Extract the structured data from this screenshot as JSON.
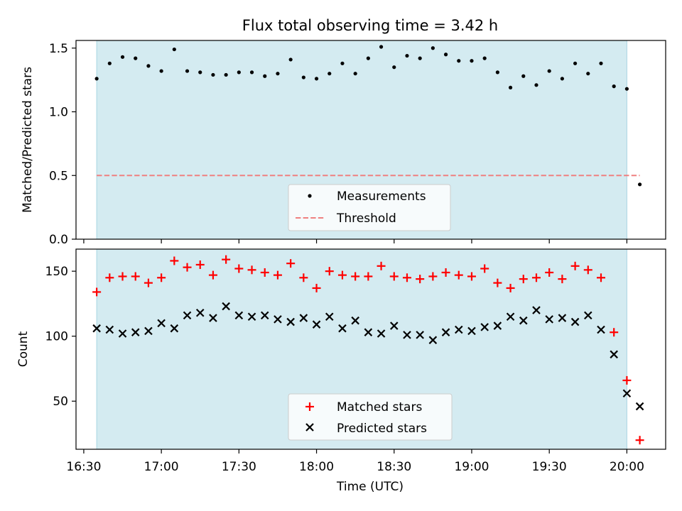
{
  "colors": {
    "shade": "#d4ebf1",
    "shade_edge": "#a9d5e1",
    "threshold": "#ef8080",
    "matched": "#ff0000",
    "predicted": "#000000",
    "measurement": "#000000"
  },
  "times": [
    "16:35",
    "16:40",
    "16:45",
    "16:50",
    "16:55",
    "17:00",
    "17:05",
    "17:10",
    "17:15",
    "17:20",
    "17:25",
    "17:30",
    "17:35",
    "17:40",
    "17:45",
    "17:50",
    "17:55",
    "18:00",
    "18:05",
    "18:10",
    "18:15",
    "18:20",
    "18:25",
    "18:30",
    "18:35",
    "18:40",
    "18:45",
    "18:50",
    "18:55",
    "19:00",
    "19:05",
    "19:10",
    "19:15",
    "19:20",
    "19:25",
    "19:30",
    "19:35",
    "19:40",
    "19:45",
    "19:50",
    "19:55",
    "20:00",
    "20:05"
  ],
  "chart_data": [
    {
      "type": "scatter",
      "title": "Flux total observing time = 3.42 h",
      "xlabel": "",
      "ylabel": "Matched/Predicted stars",
      "xlim": [
        "16:27",
        "20:15"
      ],
      "ylim": [
        0,
        1.56
      ],
      "yticks": [
        0.0,
        0.5,
        1.0,
        1.5
      ],
      "ytick_labels": [
        "0.0",
        "0.5",
        "1.0",
        "1.5"
      ],
      "shaded_span": [
        "16:35",
        "20:00"
      ],
      "threshold": {
        "value": 0.5,
        "x_range": [
          "16:35",
          "20:05"
        ]
      },
      "legend": {
        "position": "lower-center",
        "entries": [
          "Measurements",
          "Threshold"
        ]
      },
      "series": [
        {
          "name": "Measurements",
          "values": [
            1.26,
            1.38,
            1.43,
            1.42,
            1.36,
            1.32,
            1.49,
            1.32,
            1.31,
            1.29,
            1.29,
            1.31,
            1.31,
            1.28,
            1.3,
            1.41,
            1.27,
            1.26,
            1.3,
            1.38,
            1.3,
            1.42,
            1.51,
            1.35,
            1.44,
            1.42,
            1.5,
            1.45,
            1.4,
            1.4,
            1.42,
            1.31,
            1.19,
            1.28,
            1.21,
            1.32,
            1.26,
            1.38,
            1.3,
            1.38,
            1.2,
            1.18,
            0.43
          ]
        }
      ]
    },
    {
      "type": "scatter",
      "title": "",
      "xlabel": "Time (UTC)",
      "ylabel": "Count",
      "xlim": [
        "16:27",
        "20:15"
      ],
      "ylim": [
        13,
        167
      ],
      "yticks": [
        50,
        100,
        150
      ],
      "ytick_labels": [
        "50",
        "100",
        "150"
      ],
      "xticks": [
        "16:30",
        "17:00",
        "17:30",
        "18:00",
        "18:30",
        "19:00",
        "19:30",
        "20:00"
      ],
      "xtick_labels": [
        "16:30",
        "17:00",
        "17:30",
        "18:00",
        "18:30",
        "19:00",
        "19:30",
        "20:00"
      ],
      "shaded_span": [
        "16:35",
        "20:00"
      ],
      "legend": {
        "position": "lower-center",
        "entries": [
          "Matched stars",
          "Predicted stars"
        ]
      },
      "series": [
        {
          "name": "Matched stars",
          "values": [
            134,
            145,
            146,
            146,
            141,
            145,
            158,
            153,
            155,
            147,
            159,
            152,
            151,
            149,
            147,
            156,
            145,
            137,
            150,
            147,
            146,
            146,
            154,
            146,
            145,
            144,
            146,
            149,
            147,
            146,
            152,
            141,
            137,
            144,
            145,
            149,
            144,
            154,
            151,
            145,
            103,
            66,
            20
          ]
        },
        {
          "name": "Predicted stars",
          "values": [
            106,
            105,
            102,
            103,
            104,
            110,
            106,
            116,
            118,
            114,
            123,
            116,
            115,
            116,
            113,
            111,
            114,
            109,
            115,
            106,
            112,
            103,
            102,
            108,
            101,
            101,
            97,
            103,
            105,
            104,
            107,
            108,
            115,
            112,
            120,
            113,
            114,
            111,
            116,
            105,
            86,
            56,
            46
          ]
        }
      ]
    }
  ]
}
